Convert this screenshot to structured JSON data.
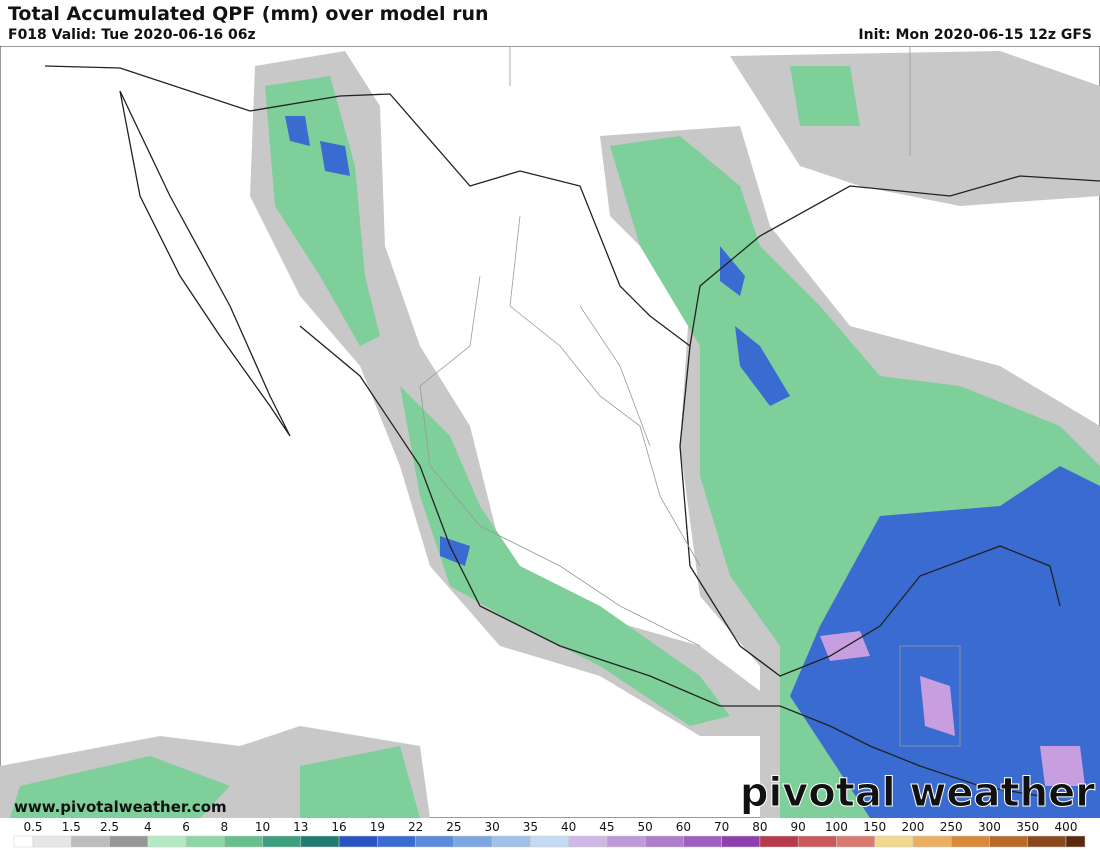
{
  "header": {
    "title": "Total Accumulated QPF (mm) over model run",
    "valid": "F018 Valid: Tue 2020-06-16 06z",
    "init": "Init: Mon 2020-06-15 12z GFS"
  },
  "footer": {
    "url": "www.pivotalweather.com",
    "logo": "pivotal weather"
  },
  "colorbar": {
    "labels": [
      "0.5",
      "1.5",
      "2.5",
      "4",
      "6",
      "8",
      "10",
      "13",
      "16",
      "19",
      "22",
      "25",
      "30",
      "35",
      "40",
      "45",
      "50",
      "60",
      "70",
      "80",
      "90",
      "100",
      "150",
      "200",
      "250",
      "300",
      "350",
      "400"
    ],
    "colors": [
      "#ffffff",
      "#e6e6e6",
      "#bdbdbd",
      "#969696",
      "#b5e8c3",
      "#8fd6a6",
      "#66bf8d",
      "#3d9e80",
      "#237a70",
      "#2853c0",
      "#3a6bd0",
      "#5a8ad8",
      "#7ba6e0",
      "#a0c2ea",
      "#c4dcf2",
      "#cfb8e6",
      "#bf9ad8",
      "#af7dcc",
      "#9f5fbf",
      "#8e3fae",
      "#b53a4a",
      "#c95a5a",
      "#d87a70",
      "#f0d890",
      "#e8b060",
      "#d88a3a",
      "#b86a2a",
      "#8a4a20",
      "#5a2a10"
    ]
  }
}
